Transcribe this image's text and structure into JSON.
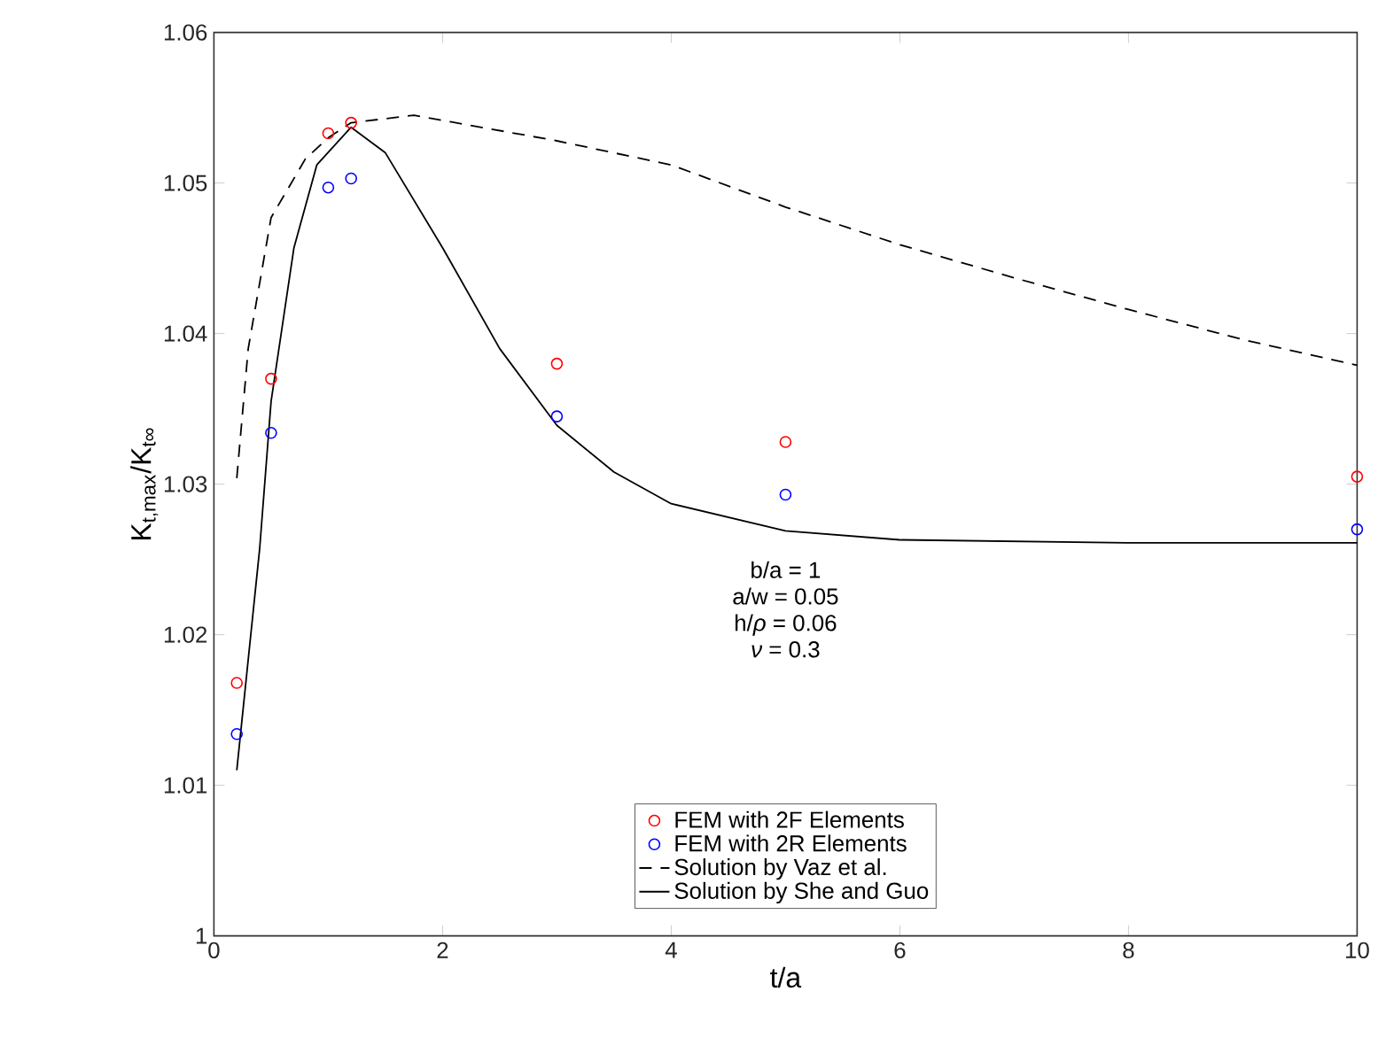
{
  "chart_data": {
    "type": "scatter",
    "xlabel": "t/a",
    "ylabel": "K$_{t,max}$/K$_{t∞}$",
    "xlim": [
      0,
      10
    ],
    "ylim": [
      1,
      1.06
    ],
    "xticks": [
      0,
      2,
      4,
      6,
      8,
      10
    ],
    "yticks": [
      1,
      1.01,
      1.02,
      1.03,
      1.04,
      1.05,
      1.06
    ],
    "grid": false,
    "legend": "bottom",
    "annotations": [
      "b/a = 1",
      "a/w = 0.05",
      "h/*ρ* = 0.06",
      "*ν* = 0.3"
    ],
    "series": [
      {
        "name": "FEM with 2F Elements",
        "marker": "circle",
        "color": "#ff0000",
        "x": [
          0.2,
          0.5,
          1,
          1.2,
          3,
          5,
          10
        ],
        "values": [
          1.0168,
          1.037,
          1.0533,
          1.054,
          1.038,
          1.0328,
          1.0305
        ]
      },
      {
        "name": "FEM with 2R Elements",
        "marker": "circle",
        "color": "#0000ff",
        "x": [
          0.2,
          0.5,
          1,
          1.2,
          3,
          5,
          10
        ],
        "values": [
          1.0134,
          1.0334,
          1.0497,
          1.0503,
          1.0345,
          1.0293,
          1.027
        ]
      },
      {
        "name": "Solution by Vaz et al.",
        "type": "line",
        "line_style": "dashed",
        "color": "#000000",
        "x": [
          0.2,
          0.3,
          0.5,
          0.8,
          1,
          1.2,
          1.75,
          3,
          4,
          5,
          6,
          7,
          8,
          9,
          10
        ],
        "values": [
          1.0304,
          1.039,
          1.0477,
          1.0516,
          1.053,
          1.054,
          1.0545,
          1.0528,
          1.0512,
          1.0484,
          1.0459,
          1.0437,
          1.0416,
          1.0396,
          1.0379
        ]
      },
      {
        "name": "Solution by She and Guo",
        "type": "line",
        "line_style": "solid",
        "color": "#000000",
        "x": [
          0.2,
          0.4,
          0.5,
          0.7,
          0.9,
          1.2,
          1.5,
          2,
          2.5,
          3,
          3.5,
          4,
          5,
          6,
          8,
          10
        ],
        "values": [
          1.011,
          1.0257,
          1.0355,
          1.0457,
          1.0512,
          1.0537,
          1.052,
          1.0457,
          1.039,
          1.0339,
          1.0308,
          1.0287,
          1.0269,
          1.0263,
          1.0261,
          1.0261
        ]
      }
    ]
  }
}
